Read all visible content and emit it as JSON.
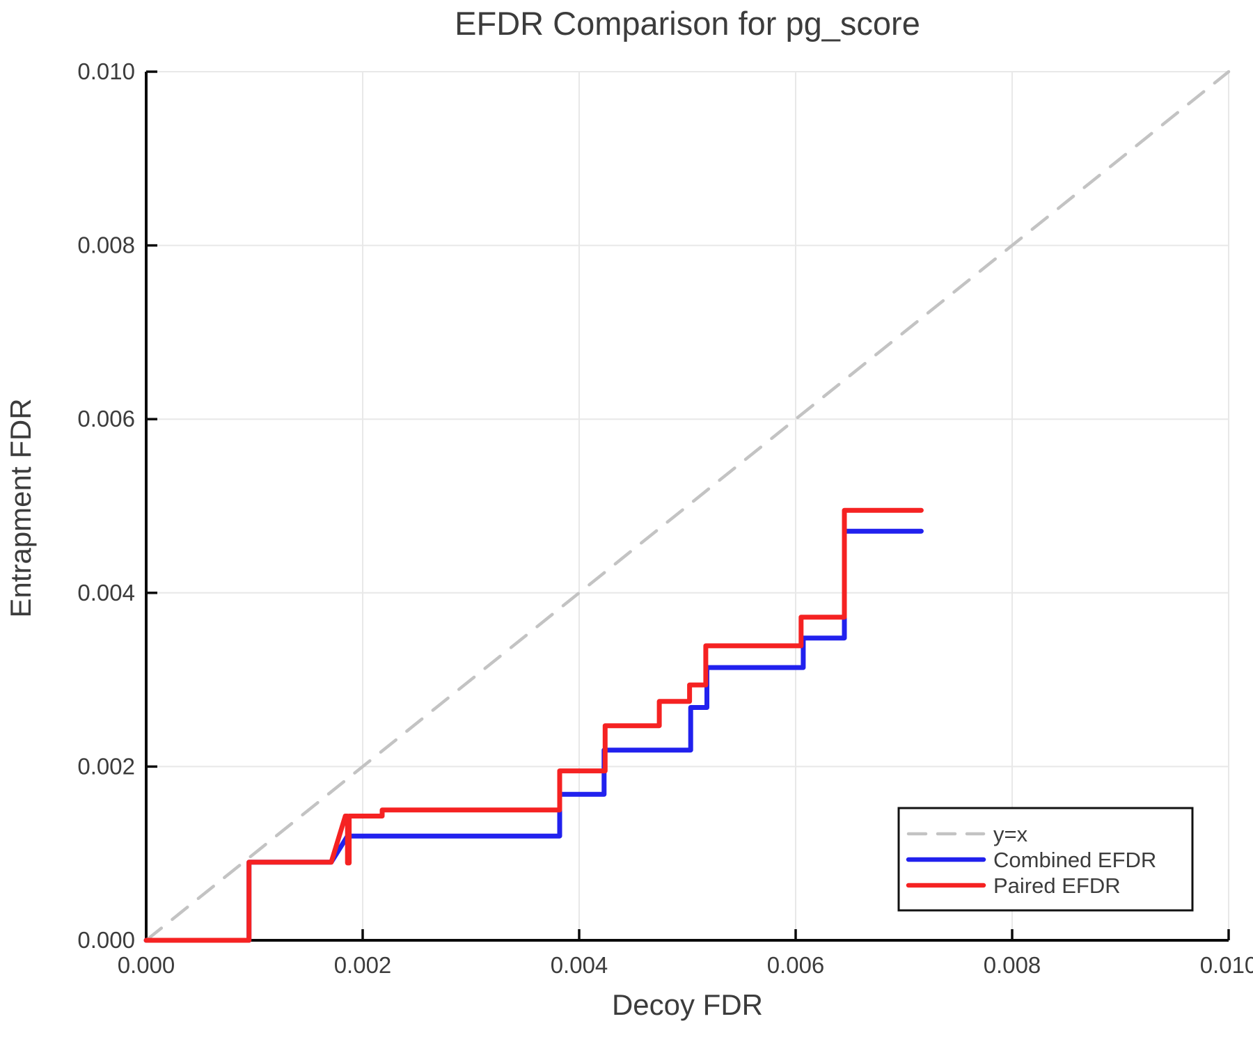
{
  "figure": {
    "title": "EFDR Comparison for pg_score",
    "xlabel": "Decoy FDR",
    "ylabel": "Entrapment FDR"
  },
  "colors": {
    "identity": "#c3c3c3",
    "combined": "#2121ee",
    "paired": "#f52222",
    "grid": "#e8e8e8",
    "spine": "#0a0a0a",
    "text": "#3c3c3c",
    "legend_border": "#111111",
    "legend_bg": "#ffffff"
  },
  "chart_data": {
    "type": "line",
    "title": "EFDR Comparison for pg_score",
    "xlabel": "Decoy FDR",
    "ylabel": "Entrapment FDR",
    "xlim": [
      0.0,
      0.01
    ],
    "ylim": [
      0.0,
      0.01
    ],
    "xticks": [
      0.0,
      0.002,
      0.004,
      0.006,
      0.008,
      0.01
    ],
    "yticks": [
      0.0,
      0.002,
      0.004,
      0.006,
      0.008,
      0.01
    ],
    "tick_format_decimals": 3,
    "grid": true,
    "legend_position": "lower right",
    "series": [
      {
        "name": "y=x",
        "style": "dashed",
        "color_key": "identity",
        "width": 4.5,
        "points": [
          [
            0.0,
            0.0
          ],
          [
            0.01,
            0.01
          ]
        ]
      },
      {
        "name": "Combined EFDR",
        "style": "solid",
        "color_key": "combined",
        "width": 7,
        "points": [
          [
            0.0,
            0.0
          ],
          [
            0.00095,
            0.0
          ],
          [
            0.00095,
            0.0009
          ],
          [
            0.00171,
            0.0009
          ],
          [
            0.00186,
            0.0012
          ],
          [
            0.00382,
            0.0012
          ],
          [
            0.00382,
            0.00168
          ],
          [
            0.00423,
            0.00168
          ],
          [
            0.00423,
            0.00219
          ],
          [
            0.00503,
            0.00219
          ],
          [
            0.00503,
            0.00268
          ],
          [
            0.00518,
            0.00268
          ],
          [
            0.00518,
            0.00314
          ],
          [
            0.00607,
            0.00314
          ],
          [
            0.00607,
            0.00348
          ],
          [
            0.00645,
            0.00348
          ],
          [
            0.00645,
            0.00471
          ],
          [
            0.00716,
            0.00471
          ]
        ]
      },
      {
        "name": "Paired EFDR",
        "style": "solid",
        "color_key": "paired",
        "width": 7,
        "points": [
          [
            0.0,
            0.0
          ],
          [
            0.00095,
            0.0
          ],
          [
            0.00095,
            0.0009
          ],
          [
            0.00171,
            0.0009
          ],
          [
            0.00184,
            0.00143
          ],
          [
            0.00186,
            0.00143
          ],
          [
            0.00186,
            0.00089
          ],
          [
            0.001875,
            0.00089
          ],
          [
            0.001875,
            0.00143
          ],
          [
            0.00218,
            0.00143
          ],
          [
            0.00218,
            0.0015
          ],
          [
            0.00382,
            0.0015
          ],
          [
            0.00382,
            0.00195
          ],
          [
            0.00424,
            0.00195
          ],
          [
            0.00424,
            0.00247
          ],
          [
            0.00474,
            0.00247
          ],
          [
            0.00474,
            0.00275
          ],
          [
            0.00502,
            0.00275
          ],
          [
            0.00502,
            0.00294
          ],
          [
            0.00517,
            0.00294
          ],
          [
            0.00517,
            0.00339
          ],
          [
            0.00605,
            0.00339
          ],
          [
            0.00605,
            0.00372
          ],
          [
            0.00645,
            0.00372
          ],
          [
            0.00645,
            0.00495
          ],
          [
            0.00716,
            0.00495
          ]
        ]
      }
    ],
    "legend": [
      {
        "label": "y=x",
        "style": "dashed",
        "color_key": "identity"
      },
      {
        "label": "Combined EFDR",
        "style": "solid",
        "color_key": "combined"
      },
      {
        "label": "Paired EFDR",
        "style": "solid",
        "color_key": "paired"
      }
    ]
  }
}
